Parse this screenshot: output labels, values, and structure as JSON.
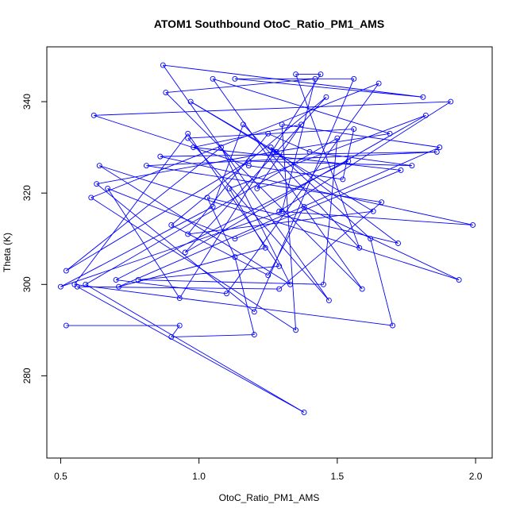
{
  "chart_data": {
    "type": "line",
    "title": "ATOM1 Southbound OtoC_Ratio_PM1_AMS",
    "xlabel": "OtoC_Ratio_PM1_AMS",
    "ylabel": "Theta (K)",
    "xlim": [
      0.45,
      2.06
    ],
    "ylim": [
      262,
      352
    ],
    "xticks": [
      0.5,
      1.0,
      1.5,
      2.0
    ],
    "xtick_labels": [
      "0.5",
      "1.0",
      "1.5",
      "2.0"
    ],
    "yticks": [
      280,
      300,
      320,
      340
    ],
    "ytick_labels": [
      "280",
      "300",
      "320",
      "340"
    ],
    "grid": false,
    "legend": "none",
    "series_color": "#0000ff",
    "marker": "open-circle",
    "series": [
      {
        "x": [
          0.52,
          0.93,
          0.9,
          1.2,
          1.13,
          1.03,
          1.72,
          1.26,
          1.62,
          1.7,
          0.55,
          0.96,
          1.29,
          0.78,
          1.45,
          1.5,
          0.59,
          1.38,
          0.56,
          1.29,
          1.66,
          0.81,
          1.86,
          0.86,
          1.99,
          1.29,
          1.91,
          0.62,
          1.18,
          1.52,
          1.56,
          0.96,
          1.47,
          0.87,
          1.81,
          1.13,
          1.56,
          1.2,
          0.63,
          1.27,
          1.69,
          1.05,
          1.59,
          0.88,
          1.42,
          1.3,
          0.5,
          1.05,
          1.16,
          1.58,
          1.35,
          1.44,
          0.93,
          0.67,
          1.13,
          1.73,
          0.98,
          1.37,
          1.21,
          1.54,
          0.7,
          1.1,
          1.65,
          0.61,
          1.35,
          1.3,
          1.87,
          0.71,
          1.24,
          1.11,
          1.82,
          0.95,
          1.46,
          0.9,
          1.25,
          1.38,
          1.94,
          0.64,
          1.33,
          1.08,
          0.52,
          1.18,
          1.77,
          1.4,
          1.25,
          0.96,
          1.63,
          0.97,
          1.28
        ],
        "y": [
          291,
          291,
          288.5,
          289,
          306,
          319,
          309,
          330,
          310,
          291,
          300,
          333,
          304,
          301,
          300,
          332,
          300,
          272,
          299.5,
          299,
          318,
          326,
          329,
          328,
          313,
          316,
          340,
          337,
          326,
          323,
          334,
          332,
          296.5,
          348,
          341,
          345,
          345,
          294,
          322,
          329,
          333,
          345,
          299,
          342,
          345,
          316,
          299.5,
          317,
          335,
          308,
          346,
          346,
          297,
          321,
          310,
          325,
          330,
          335,
          321,
          327,
          301,
          298,
          344,
          319,
          290,
          335,
          330,
          299.5,
          308,
          321,
          337,
          307,
          341,
          313,
          302,
          317,
          301,
          326,
          300,
          330,
          303,
          327,
          326,
          329,
          333,
          311,
          316,
          340,
          329
        ]
      }
    ]
  }
}
